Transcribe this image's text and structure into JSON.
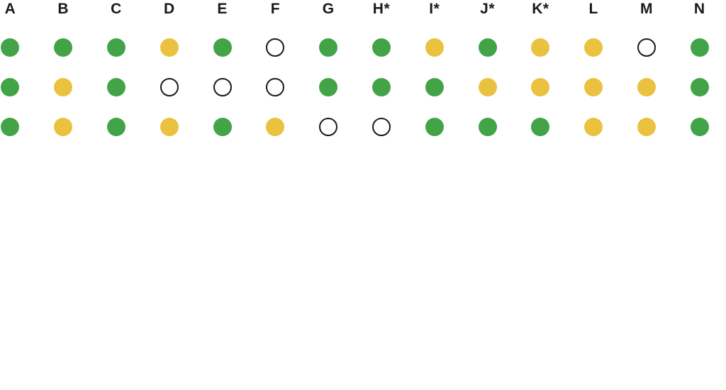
{
  "page": {
    "background": "#ffffff"
  },
  "chart_data": {
    "type": "table",
    "description": "status-dot matrix, 14 lettered columns by 3 rows",
    "columns": [
      "A",
      "B",
      "C",
      "D",
      "E",
      "F",
      "G",
      "H*",
      "I*",
      "J*",
      "K*",
      "L",
      "M",
      "N"
    ],
    "rows": [
      [
        "green",
        "green",
        "green",
        "yellow",
        "green",
        "empty",
        "green",
        "green",
        "yellow",
        "green",
        "yellow",
        "yellow",
        "empty",
        "green"
      ],
      [
        "green",
        "yellow",
        "green",
        "empty",
        "empty",
        "empty",
        "green",
        "green",
        "green",
        "yellow",
        "yellow",
        "yellow",
        "yellow",
        "green"
      ],
      [
        "green",
        "yellow",
        "green",
        "yellow",
        "green",
        "yellow",
        "empty",
        "empty",
        "green",
        "green",
        "green",
        "yellow",
        "yellow",
        "green"
      ]
    ],
    "dot_colors": {
      "green": "#43A447",
      "yellow": "#EAC23F",
      "empty_fill": "#FFFFFF",
      "empty_stroke": "#1A1A1A"
    },
    "layout": {
      "columns_count": 14,
      "rows_count": 3,
      "legend_position": "none",
      "grid": "off"
    }
  }
}
